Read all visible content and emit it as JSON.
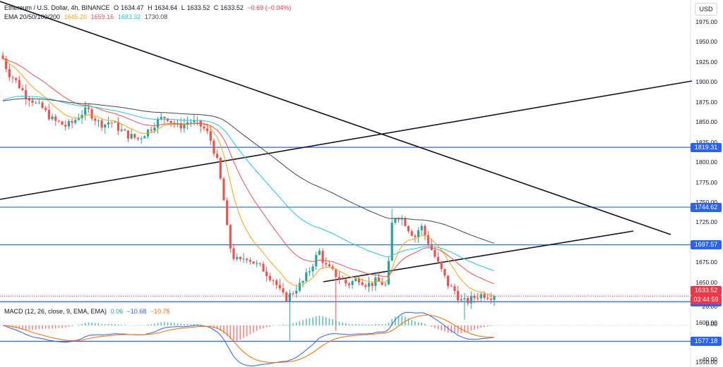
{
  "header": {
    "symbol": "Ethereum / U.S. Dollar, 4h, BINANCE",
    "open_label": "O",
    "open": "1634.47",
    "high_label": "H",
    "high": "1634.64",
    "low_label": "L",
    "low": "1633.52",
    "close_label": "C",
    "close": "1633.52",
    "change": "−0.69 (−0.04%)",
    "ema_title": "EMA 20/50/100/200",
    "ema_values": [
      "1645.20",
      "1659.16",
      "1683.32",
      "1730.08"
    ],
    "ema_colors": [
      "#f7a21b",
      "#ef5350",
      "#26c6da",
      "#434651"
    ]
  },
  "macd": {
    "title": "MACD (12, 26, close, 9, EMA, EMA)",
    "values": [
      "0.06",
      "−10.68",
      "−10.75"
    ],
    "value_colors": [
      "#26a69a",
      "#2962ff",
      "#ff6d00"
    ]
  },
  "price_axis": {
    "currency": "USD",
    "ticks": [
      "1975.00",
      "1950.00",
      "1925.00",
      "1900.00",
      "1875.00",
      "1850.00",
      "1825.00",
      "1800.00",
      "1775.00",
      "1750.00",
      "1725.00",
      "1700.00",
      "1675.00",
      "1650.00",
      "1625.00",
      "1600.00",
      "1575.00",
      "1550.00"
    ],
    "macd_ticks": [
      "20.00",
      "0.00",
      "−20.00",
      "−40.00"
    ]
  },
  "levels": [
    "1819.31",
    "1744.62",
    "1697.57",
    "1626.68",
    "1577.18"
  ],
  "current_price": {
    "price": "1633.52",
    "countdown": "03:44:59"
  },
  "colors": {
    "up": "#26a69a",
    "down": "#ef5350",
    "level": "#2962ff",
    "trend": "#131722"
  },
  "chart_data": {
    "type": "candlestick",
    "timeframe": "4h",
    "price_range": [
      1540,
      1990
    ],
    "horizontal_levels": [
      1819.31,
      1744.62,
      1697.57,
      1626.68,
      1577.18
    ],
    "close_path": [
      1930,
      1912,
      1905,
      1895,
      1885,
      1880,
      1872,
      1868,
      1860,
      1852,
      1850,
      1846,
      1848,
      1855,
      1862,
      1866,
      1858,
      1850,
      1848,
      1852,
      1846,
      1840,
      1835,
      1832,
      1830,
      1836,
      1842,
      1850,
      1855,
      1858,
      1850,
      1845,
      1848,
      1852,
      1850,
      1846,
      1840,
      1825,
      1800,
      1760,
      1700,
      1680,
      1676,
      1684,
      1678,
      1672,
      1668,
      1660,
      1654,
      1640,
      1630,
      1636,
      1644,
      1650,
      1662,
      1676,
      1690,
      1672,
      1666,
      1660,
      1654,
      1648,
      1652,
      1656,
      1650,
      1648,
      1652,
      1650,
      1646,
      1732,
      1734,
      1728,
      1716,
      1708,
      1722,
      1706,
      1690,
      1675,
      1660,
      1646,
      1640,
      1628,
      1626,
      1630,
      1634,
      1636,
      1634,
      1633.52
    ]
  }
}
